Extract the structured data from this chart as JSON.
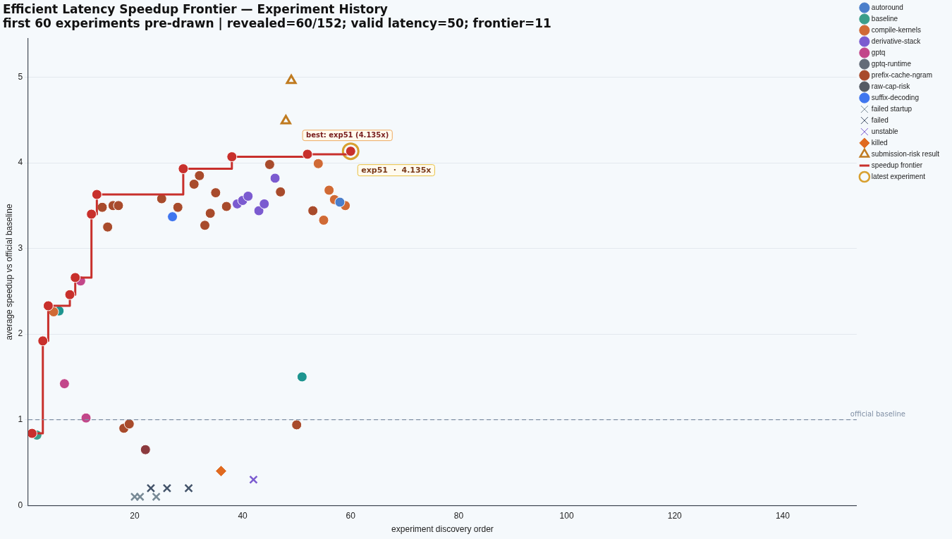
{
  "chart_data": {
    "type": "scatter",
    "title": "Efficient Latency Speedup Frontier — Experiment History",
    "subtitle": "first 60 experiments pre-drawn | revealed=60/152; valid latency=50; frontier=11",
    "xlabel": "experiment discovery order",
    "ylabel": "average speedup vs official baseline",
    "xlim": [
      0.3,
      153.7
    ],
    "ylim": [
      0,
      5.45
    ],
    "xticks": [
      20,
      40,
      60,
      80,
      100,
      120,
      140
    ],
    "yticks": [
      0,
      1,
      2,
      3,
      4,
      5
    ],
    "grid": "y",
    "legend": "right",
    "ref_lines": [
      {
        "axis": "y",
        "value": 1,
        "label": "official baseline",
        "color": "#8190a5",
        "line_style": "dashed"
      }
    ],
    "annotations": [
      {
        "text": "best: exp51 (4.135x)",
        "x": 60,
        "y": 4.135
      },
      {
        "text": "exp51  ·  4.135x",
        "x": 60,
        "y": 4.135
      }
    ],
    "series": [
      {
        "name": "autoround",
        "color": "#4a7ecb",
        "marker": "circle",
        "x": [
          58
        ],
        "values": [
          3.54
        ]
      },
      {
        "name": "baseline",
        "color": "#3a9e8a",
        "marker": "circle",
        "x": [
          1.9
        ],
        "values": [
          0.82
        ]
      },
      {
        "name": "compile-kernels",
        "color": "#d06a35",
        "marker": "circle",
        "x": [
          5,
          54,
          55,
          56,
          57,
          59
        ],
        "values": [
          2.26,
          3.99,
          3.33,
          3.68,
          3.57,
          3.5
        ]
      },
      {
        "name": "derivative-stack",
        "color": "#7b5bd0",
        "marker": "circle",
        "x": [
          39,
          40,
          41,
          43,
          44,
          46
        ],
        "values": [
          3.52,
          3.56,
          3.61,
          3.44,
          3.52,
          3.82
        ]
      },
      {
        "name": "gptq",
        "color": "#c2478a",
        "marker": "circle",
        "x": [
          7,
          10,
          11
        ],
        "values": [
          1.42,
          2.62,
          1.02
        ]
      },
      {
        "name": "gptq-runtime",
        "color": "#636b78",
        "marker": "circle"
      },
      {
        "color": "#1e9590",
        "marker": "circle",
        "x": [
          51
        ],
        "values": [
          1.5
        ]
      },
      {
        "name": "prefix-cache-ngram",
        "color": "#a84b2c",
        "marker": "circle",
        "x": [
          14,
          15,
          16,
          17,
          18,
          19,
          25,
          28,
          31,
          32,
          33,
          34,
          35,
          37,
          45,
          47,
          50,
          53
        ],
        "values": [
          3.48,
          3.25,
          3.5,
          3.5,
          0.9,
          0.95,
          3.58,
          3.48,
          3.75,
          3.85,
          3.27,
          3.41,
          3.65,
          3.49,
          3.98,
          3.66,
          0.94,
          3.44
        ]
      },
      {
        "name": "raw-cap-risk",
        "color": "#555b63",
        "marker": "circle"
      },
      {
        "color": "#8b3a3e",
        "marker": "circle",
        "x": [
          22
        ],
        "values": [
          0.65
        ]
      },
      {
        "name": "suffix-decoding",
        "color": "#3f76ef",
        "marker": "circle",
        "x": [
          27
        ],
        "values": [
          3.37
        ]
      },
      {
        "color": "#1e9590",
        "marker": "circle",
        "x": [
          6
        ],
        "values": [
          2.27
        ]
      },
      {
        "name": "failed startup",
        "color": "#788a96",
        "marker": "cross",
        "x": [
          20,
          21,
          24
        ],
        "values": [
          0.1,
          0.1,
          0.1
        ]
      },
      {
        "name": "failed",
        "color": "#44546a",
        "marker": "cross",
        "x": [
          23,
          26,
          30
        ],
        "values": [
          0.2,
          0.2,
          0.2
        ]
      },
      {
        "name": "unstable",
        "color": "#7b5bd0",
        "marker": "cross",
        "x": [
          42
        ],
        "values": [
          0.3
        ]
      },
      {
        "name": "killed",
        "color": "#e06a20",
        "marker": "diamond",
        "x": [
          36
        ],
        "values": [
          0.4
        ]
      },
      {
        "name": "submission-risk result",
        "color": "#c07b20",
        "marker": "triangle",
        "x": [
          48,
          49
        ],
        "values": [
          4.49,
          4.96
        ]
      },
      {
        "name": "speedup frontier",
        "type": "step",
        "color": "#c8302c",
        "marker": "circle",
        "x": [
          1,
          3,
          4,
          8,
          9,
          12,
          13,
          29,
          38,
          52,
          60
        ],
        "values": [
          0.84,
          1.92,
          2.33,
          2.46,
          2.66,
          3.4,
          3.63,
          3.93,
          4.07,
          4.1,
          4.135
        ]
      },
      {
        "name": "latest experiment",
        "color": "#d8a030",
        "marker": "circle",
        "x": [
          60
        ],
        "values": [
          4.135
        ]
      }
    ]
  }
}
